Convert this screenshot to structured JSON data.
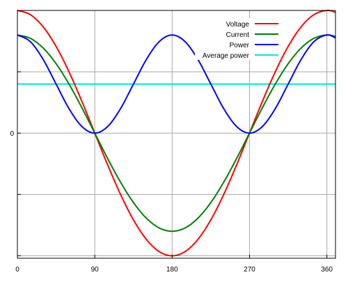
{
  "chart_data": {
    "type": "line",
    "title": "",
    "xlabel": "",
    "ylabel": "",
    "xlim": [
      0,
      370
    ],
    "ylim": [
      -1.02,
      1.0
    ],
    "grid": true,
    "legend_placement": "top-right",
    "x_ticks": [
      0,
      90,
      180,
      270,
      360
    ],
    "y_ticks": [
      -1,
      -0.5,
      0,
      0.5,
      1
    ],
    "y_tick_labels": [
      "",
      "",
      "0",
      "",
      ""
    ],
    "series": [
      {
        "name": "Voltage",
        "color": "#ff0000",
        "x": [
          0,
          15,
          30,
          45,
          60,
          75,
          90,
          105,
          120,
          135,
          150,
          165,
          180,
          195,
          210,
          225,
          240,
          255,
          270,
          285,
          300,
          315,
          330,
          345,
          360,
          370
        ],
        "y": [
          1.0,
          0.966,
          0.866,
          0.707,
          0.5,
          0.259,
          0.0,
          -0.259,
          -0.5,
          -0.707,
          -0.866,
          -0.966,
          -1.0,
          -0.966,
          -0.866,
          -0.707,
          -0.5,
          -0.259,
          0.0,
          0.259,
          0.5,
          0.707,
          0.866,
          0.966,
          1.0,
          0.985
        ]
      },
      {
        "name": "Current",
        "color": "#008000",
        "x": [
          0,
          15,
          30,
          45,
          60,
          75,
          90,
          105,
          120,
          135,
          150,
          165,
          180,
          195,
          210,
          225,
          240,
          255,
          270,
          285,
          300,
          315,
          330,
          345,
          360,
          370
        ],
        "y": [
          0.8,
          0.773,
          0.693,
          0.566,
          0.4,
          0.207,
          0.0,
          -0.207,
          -0.4,
          -0.566,
          -0.693,
          -0.773,
          -0.8,
          -0.773,
          -0.693,
          -0.566,
          -0.4,
          -0.207,
          0.0,
          0.207,
          0.4,
          0.566,
          0.693,
          0.773,
          0.8,
          0.788
        ]
      },
      {
        "name": "Power",
        "color": "#0000ff",
        "x": [
          0,
          15,
          30,
          45,
          60,
          75,
          90,
          105,
          120,
          135,
          150,
          165,
          180,
          195,
          210,
          225,
          240,
          255,
          270,
          285,
          300,
          315,
          330,
          345,
          360,
          370
        ],
        "y": [
          0.8,
          0.746,
          0.6,
          0.4,
          0.2,
          0.054,
          0.0,
          0.054,
          0.2,
          0.4,
          0.6,
          0.746,
          0.8,
          0.746,
          0.6,
          0.4,
          0.2,
          0.054,
          0.0,
          0.054,
          0.2,
          0.4,
          0.6,
          0.746,
          0.8,
          0.776
        ]
      },
      {
        "name": "Average power",
        "color": "#00e5e5",
        "x": [
          0,
          370
        ],
        "y": [
          0.4,
          0.4
        ]
      }
    ]
  }
}
